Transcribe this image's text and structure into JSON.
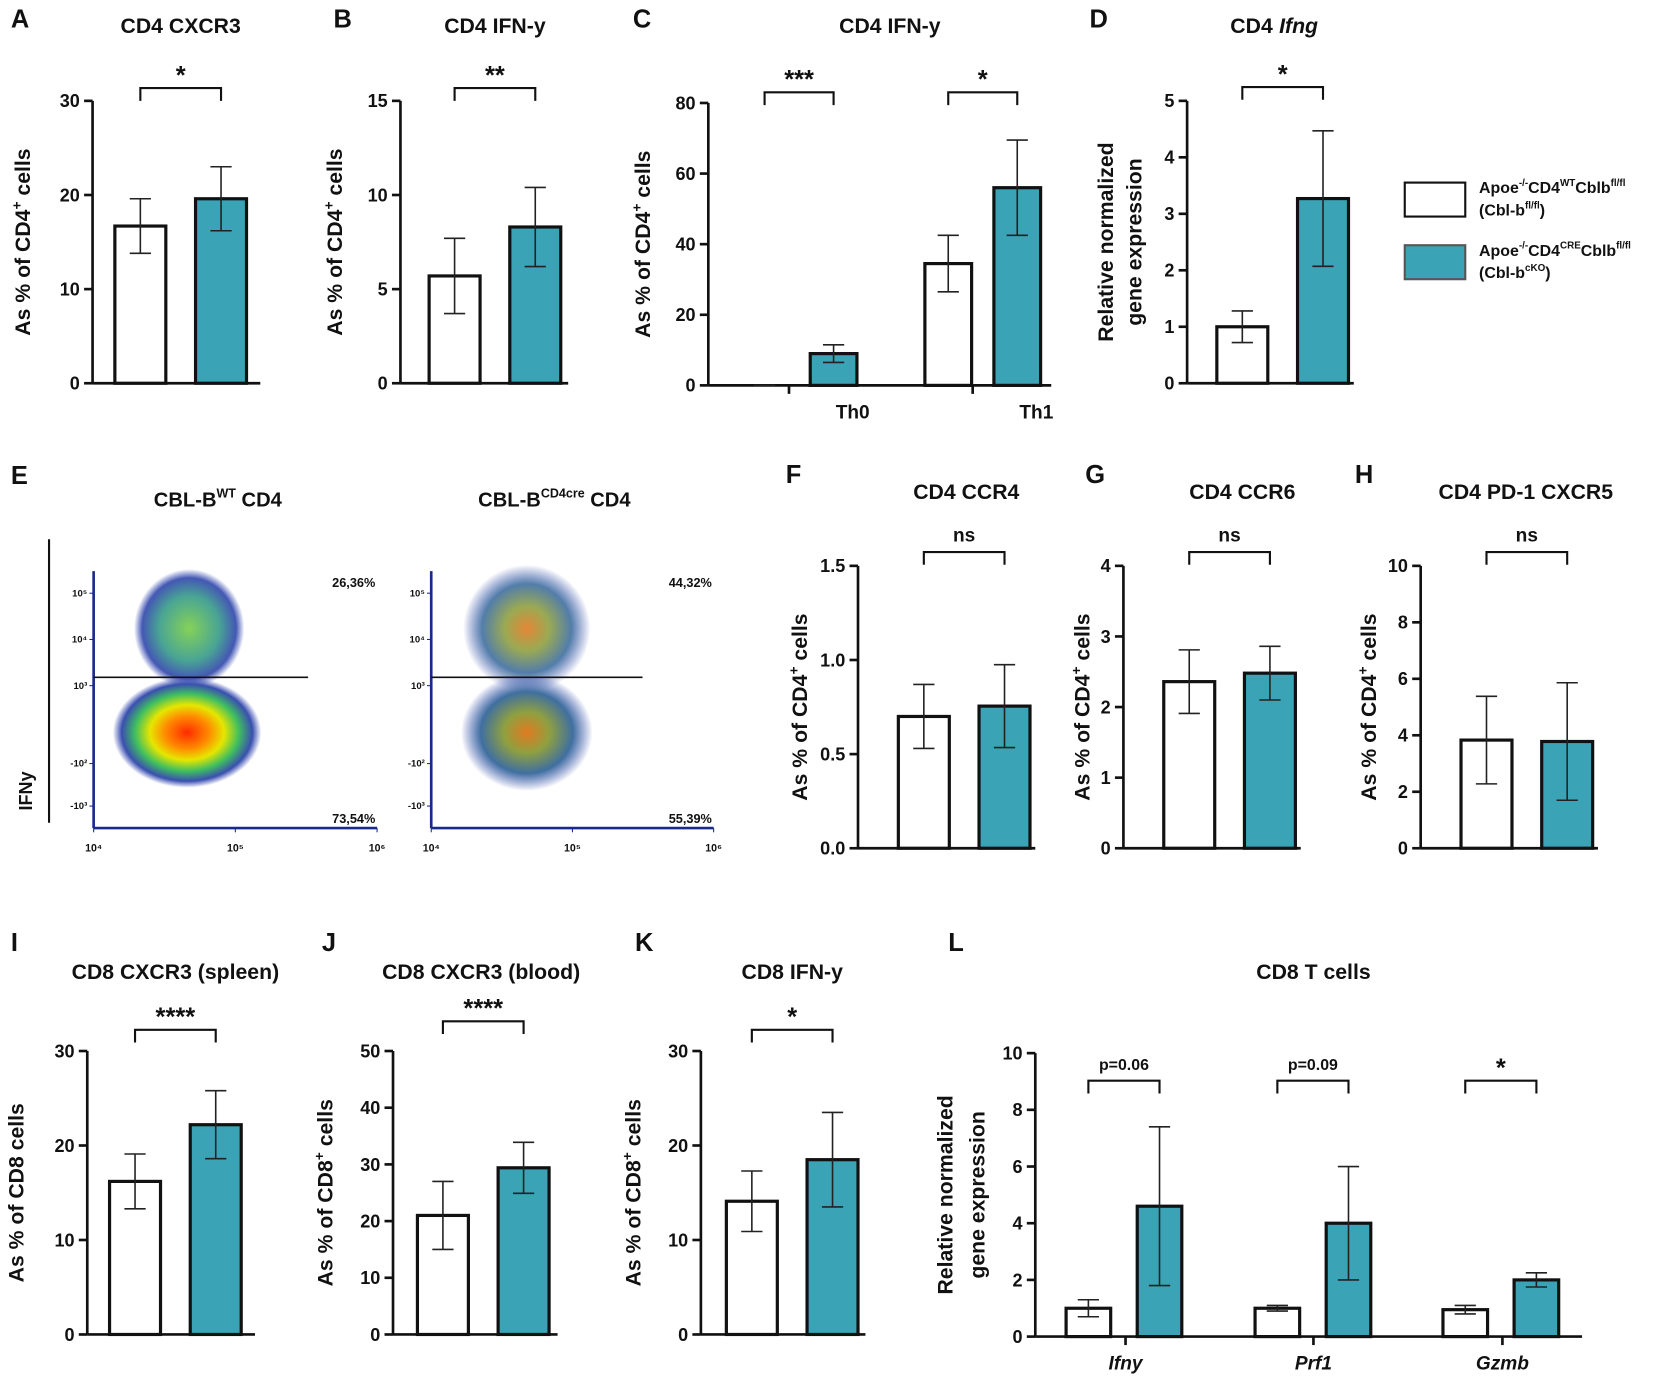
{
  "legend": [
    {
      "name": [
        "Apoe",
        "-/-",
        "CD4",
        "WT",
        "Cblb",
        "fl/fl"
      ],
      "short": [
        "(Cbl-b",
        "fl/fl",
        ")"
      ],
      "color": "#ffffff"
    },
    {
      "name": [
        "Apoe",
        "-/-",
        "CD4",
        "CRE",
        "Cblb",
        "fl/fl"
      ],
      "short": [
        "(Cbl-b",
        "cKO",
        ")"
      ],
      "color": "#3aa3b5"
    }
  ],
  "chart_data": [
    {
      "type": "bar",
      "label": "A",
      "title": "CD4 CXCR3",
      "ylabel": "As % of CD4",
      "ylabel_sup": "+",
      "ylabel_end": " cells",
      "ylim": [
        0,
        30
      ],
      "yticks": [
        0,
        10,
        20,
        30
      ],
      "annotations": [
        "*"
      ],
      "series": [
        {
          "values": [
            16.7
          ],
          "errors": [
            2.9
          ]
        },
        {
          "values": [
            19.6
          ],
          "errors": [
            3.4
          ]
        }
      ]
    },
    {
      "type": "bar",
      "label": "B",
      "title": "CD4 IFN-y",
      "ylabel": "As % of CD4",
      "ylabel_sup": "+",
      "ylabel_end": " cells",
      "ylim": [
        0,
        15
      ],
      "yticks": [
        0,
        5,
        10,
        15
      ],
      "annotations": [
        "**"
      ],
      "series": [
        {
          "values": [
            5.7
          ],
          "errors": [
            2.0
          ]
        },
        {
          "values": [
            8.3
          ],
          "errors": [
            2.1
          ]
        }
      ]
    },
    {
      "type": "bar",
      "label": "C",
      "title": "CD4 IFN-y",
      "ylabel": "As % of CD4",
      "ylabel_sup": "+",
      "ylabel_end": " cells",
      "ylim": [
        0,
        80
      ],
      "yticks": [
        0,
        20,
        40,
        60,
        80
      ],
      "categories": [
        "Th0",
        "Th1"
      ],
      "annotations": [
        "***",
        "*"
      ],
      "series": [
        {
          "values": [
            0,
            34.5
          ],
          "errors": [
            0,
            8
          ]
        },
        {
          "values": [
            9,
            56
          ],
          "errors": [
            2.5,
            13.5
          ]
        }
      ]
    },
    {
      "type": "bar",
      "label": "D",
      "title": "CD4",
      "title_italic": "Ifng",
      "ylabel_lines": [
        "Relative normalized",
        "gene expression"
      ],
      "ylim": [
        0,
        5
      ],
      "yticks": [
        0,
        1,
        2,
        3,
        4,
        5
      ],
      "annotations": [
        "*"
      ],
      "series": [
        {
          "values": [
            1.0
          ],
          "errors": [
            0.28
          ]
        },
        {
          "values": [
            3.27
          ],
          "errors": [
            1.2
          ]
        }
      ]
    },
    {
      "type": "flow",
      "label": "E",
      "ylabel": "IFNy",
      "xscale": "log",
      "xlim": [
        10000,
        1000000
      ],
      "xticks": [
        {
          "value": 10000,
          "label": "10⁴"
        },
        {
          "value": 100000,
          "label": "10⁵"
        },
        {
          "value": 1000000,
          "label": "10⁶"
        }
      ],
      "ylim": [
        -3000,
        300000
      ],
      "yticks": [
        {
          "value": 100000,
          "label": "10⁵"
        },
        {
          "value": 10000,
          "label": "10⁴"
        },
        {
          "value": 1000,
          "label": "10³"
        },
        {
          "value": -100,
          "label": "-10²"
        },
        {
          "value": -1000,
          "label": "-10³"
        }
      ],
      "plots": [
        {
          "title": [
            "CBL-B",
            "WT",
            " CD4"
          ],
          "upper": "26,36%",
          "lower": "73,54%"
        },
        {
          "title": [
            "CBL-B",
            "CD4cre",
            " CD4"
          ],
          "upper": "44,32%",
          "lower": "55,39%"
        }
      ]
    },
    {
      "type": "bar",
      "label": "F",
      "title": "CD4 CCR4",
      "ylabel": "As % of CD4",
      "ylabel_sup": "+",
      "ylabel_end": " cells",
      "ylim": [
        0,
        1.5
      ],
      "yticks": [
        {
          "value": 0,
          "label": "0.0"
        },
        0.5,
        {
          "value": 1,
          "label": "1.0"
        },
        1.5
      ],
      "annotations": [
        "ns"
      ],
      "series": [
        {
          "values": [
            0.7
          ],
          "errors": [
            0.17
          ]
        },
        {
          "values": [
            0.755
          ],
          "errors": [
            0.22
          ]
        }
      ]
    },
    {
      "type": "bar",
      "label": "G",
      "title": "CD4 CCR6",
      "ylabel": "As % of CD4",
      "ylabel_sup": "+",
      "ylabel_end": " cells",
      "ylim": [
        0,
        4
      ],
      "yticks": [
        0,
        1,
        2,
        3,
        4
      ],
      "annotations": [
        "ns"
      ],
      "series": [
        {
          "values": [
            2.36
          ],
          "errors": [
            0.45
          ]
        },
        {
          "values": [
            2.48
          ],
          "errors": [
            0.38
          ]
        }
      ]
    },
    {
      "type": "bar",
      "label": "H",
      "title": "CD4 PD-1 CXCR5",
      "ylabel": "As % of CD4",
      "ylabel_sup": "+",
      "ylabel_end": " cells",
      "ylim": [
        0,
        10
      ],
      "yticks": [
        0,
        2,
        4,
        6,
        8,
        10
      ],
      "annotations": [
        "ns"
      ],
      "series": [
        {
          "values": [
            3.83
          ],
          "errors": [
            1.55
          ]
        },
        {
          "values": [
            3.78
          ],
          "errors": [
            2.08
          ]
        }
      ]
    },
    {
      "type": "bar",
      "label": "I",
      "title": "CD8 CXCR3 (spleen)",
      "ylabel": "As % of CD8",
      "ylabel_end": "   cells",
      "ylim": [
        0,
        30
      ],
      "yticks": [
        0,
        10,
        20,
        30
      ],
      "annotations": [
        "****"
      ],
      "series": [
        {
          "values": [
            16.2
          ],
          "errors": [
            2.9
          ]
        },
        {
          "values": [
            22.2
          ],
          "errors": [
            3.6
          ]
        }
      ]
    },
    {
      "type": "bar",
      "label": "J",
      "title": "CD8 CXCR3 (blood)",
      "ylabel": "As % of CD8",
      "ylabel_sup": "+",
      "ylabel_end": " cells",
      "ylim": [
        0,
        50
      ],
      "yticks": [
        0,
        10,
        20,
        30,
        40,
        50
      ],
      "annotations": [
        "****"
      ],
      "series": [
        {
          "values": [
            21
          ],
          "errors": [
            6
          ]
        },
        {
          "values": [
            29.4
          ],
          "errors": [
            4.5
          ]
        }
      ]
    },
    {
      "type": "bar",
      "label": "K",
      "title": "CD8 IFN-y",
      "ylabel": "As % of CD8",
      "ylabel_sup": "+",
      "ylabel_end": " cells",
      "ylim": [
        0,
        30
      ],
      "yticks": [
        0,
        10,
        20,
        30
      ],
      "annotations": [
        "*"
      ],
      "series": [
        {
          "values": [
            14.1
          ],
          "errors": [
            3.2
          ]
        },
        {
          "values": [
            18.5
          ],
          "errors": [
            5
          ]
        }
      ]
    },
    {
      "type": "bar",
      "label": "L",
      "title": "CD8 T cells",
      "ylabel_lines": [
        "Relative normalized",
        "gene expression"
      ],
      "ylim": [
        0,
        10
      ],
      "yticks": [
        0,
        2,
        4,
        6,
        8,
        10
      ],
      "categories": [
        "Ifny",
        "Prf1",
        "Gzmb"
      ],
      "categories_italic": true,
      "annotations": [
        "p=0.06",
        "p=0.09",
        "*"
      ],
      "series": [
        {
          "values": [
            1.0,
            1.0,
            0.95
          ],
          "errors": [
            0.3,
            0.1,
            0.15
          ]
        },
        {
          "values": [
            4.6,
            4.0,
            2.0
          ],
          "errors": [
            2.8,
            2.0,
            0.25
          ]
        }
      ]
    }
  ]
}
